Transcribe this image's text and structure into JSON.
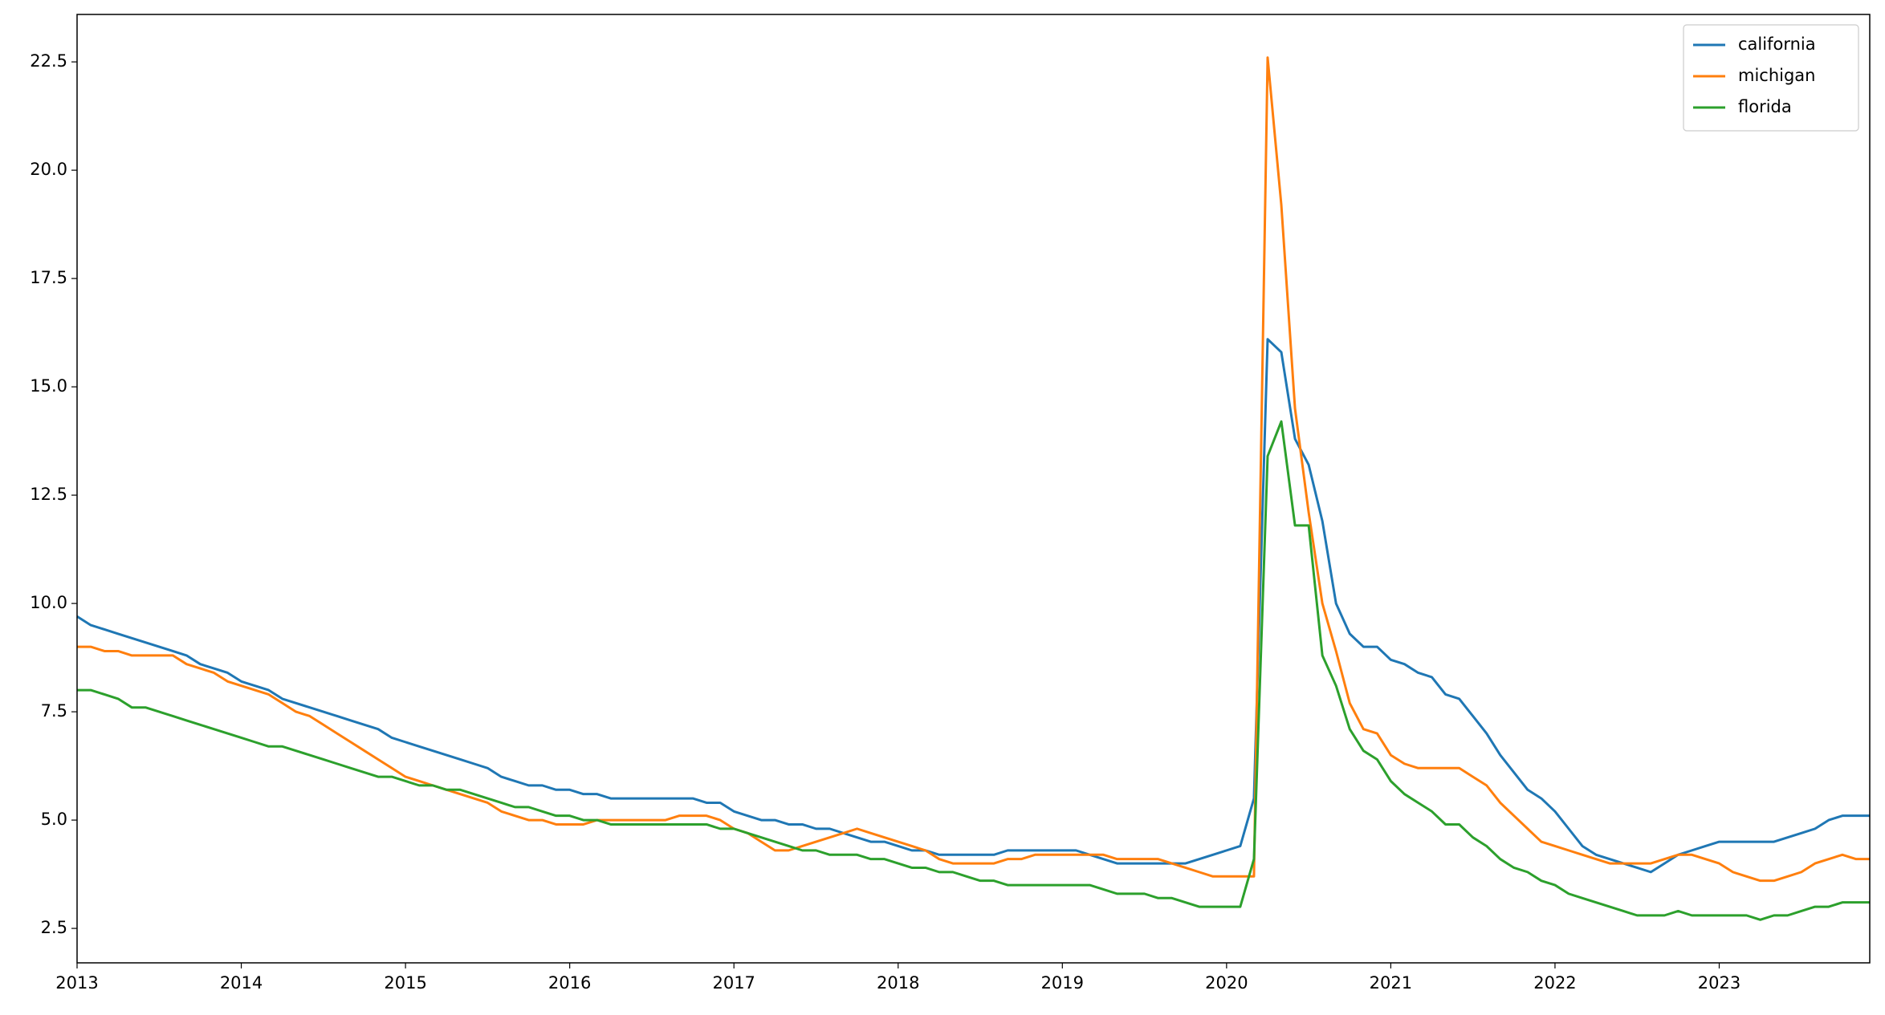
{
  "chart_data": {
    "type": "line",
    "x": [
      "2013-01",
      "2013-02",
      "2013-03",
      "2013-04",
      "2013-05",
      "2013-06",
      "2013-07",
      "2013-08",
      "2013-09",
      "2013-10",
      "2013-11",
      "2013-12",
      "2014-01",
      "2014-02",
      "2014-03",
      "2014-04",
      "2014-05",
      "2014-06",
      "2014-07",
      "2014-08",
      "2014-09",
      "2014-10",
      "2014-11",
      "2014-12",
      "2015-01",
      "2015-02",
      "2015-03",
      "2015-04",
      "2015-05",
      "2015-06",
      "2015-07",
      "2015-08",
      "2015-09",
      "2015-10",
      "2015-11",
      "2015-12",
      "2016-01",
      "2016-02",
      "2016-03",
      "2016-04",
      "2016-05",
      "2016-06",
      "2016-07",
      "2016-08",
      "2016-09",
      "2016-10",
      "2016-11",
      "2016-12",
      "2017-01",
      "2017-02",
      "2017-03",
      "2017-04",
      "2017-05",
      "2017-06",
      "2017-07",
      "2017-08",
      "2017-09",
      "2017-10",
      "2017-11",
      "2017-12",
      "2018-01",
      "2018-02",
      "2018-03",
      "2018-04",
      "2018-05",
      "2018-06",
      "2018-07",
      "2018-08",
      "2018-09",
      "2018-10",
      "2018-11",
      "2018-12",
      "2019-01",
      "2019-02",
      "2019-03",
      "2019-04",
      "2019-05",
      "2019-06",
      "2019-07",
      "2019-08",
      "2019-09",
      "2019-10",
      "2019-11",
      "2019-12",
      "2020-01",
      "2020-02",
      "2020-03",
      "2020-04",
      "2020-05",
      "2020-06",
      "2020-07",
      "2020-08",
      "2020-09",
      "2020-10",
      "2020-11",
      "2020-12",
      "2021-01",
      "2021-02",
      "2021-03",
      "2021-04",
      "2021-05",
      "2021-06",
      "2021-07",
      "2021-08",
      "2021-09",
      "2021-10",
      "2021-11",
      "2021-12",
      "2022-01",
      "2022-02",
      "2022-03",
      "2022-04",
      "2022-05",
      "2022-06",
      "2022-07",
      "2022-08",
      "2022-09",
      "2022-10",
      "2022-11",
      "2022-12",
      "2023-01",
      "2023-02",
      "2023-03",
      "2023-04",
      "2023-05",
      "2023-06",
      "2023-07",
      "2023-08",
      "2023-09",
      "2023-10",
      "2023-11",
      "2023-12"
    ],
    "series": [
      {
        "name": "california",
        "color": "#1f77b4",
        "values": [
          9.7,
          9.5,
          9.4,
          9.3,
          9.2,
          9.1,
          9.0,
          8.9,
          8.8,
          8.6,
          8.5,
          8.4,
          8.2,
          8.1,
          8.0,
          7.8,
          7.7,
          7.6,
          7.5,
          7.4,
          7.3,
          7.2,
          7.1,
          6.9,
          6.8,
          6.7,
          6.6,
          6.5,
          6.4,
          6.3,
          6.2,
          6.0,
          5.9,
          5.8,
          5.8,
          5.7,
          5.7,
          5.6,
          5.6,
          5.5,
          5.5,
          5.5,
          5.5,
          5.5,
          5.5,
          5.5,
          5.4,
          5.4,
          5.2,
          5.1,
          5.0,
          5.0,
          4.9,
          4.9,
          4.8,
          4.8,
          4.7,
          4.6,
          4.5,
          4.5,
          4.4,
          4.3,
          4.3,
          4.2,
          4.2,
          4.2,
          4.2,
          4.2,
          4.3,
          4.3,
          4.3,
          4.3,
          4.3,
          4.3,
          4.2,
          4.1,
          4.0,
          4.0,
          4.0,
          4.0,
          4.0,
          4.0,
          4.1,
          4.2,
          4.3,
          4.4,
          5.5,
          16.1,
          15.8,
          13.8,
          13.2,
          11.9,
          10.0,
          9.3,
          9.0,
          9.0,
          8.7,
          8.6,
          8.4,
          8.3,
          7.9,
          7.8,
          7.4,
          7.0,
          6.5,
          6.1,
          5.7,
          5.5,
          5.2,
          4.8,
          4.4,
          4.2,
          4.1,
          4.0,
          3.9,
          3.8,
          4.0,
          4.2,
          4.3,
          4.4,
          4.5,
          4.5,
          4.5,
          4.5,
          4.5,
          4.6,
          4.7,
          4.8,
          5.0,
          5.1,
          5.1,
          5.1
        ]
      },
      {
        "name": "michigan",
        "color": "#ff7f0e",
        "values": [
          9.0,
          9.0,
          8.9,
          8.9,
          8.8,
          8.8,
          8.8,
          8.8,
          8.6,
          8.5,
          8.4,
          8.2,
          8.1,
          8.0,
          7.9,
          7.7,
          7.5,
          7.4,
          7.2,
          7.0,
          6.8,
          6.6,
          6.4,
          6.2,
          6.0,
          5.9,
          5.8,
          5.7,
          5.6,
          5.5,
          5.4,
          5.2,
          5.1,
          5.0,
          5.0,
          4.9,
          4.9,
          4.9,
          5.0,
          5.0,
          5.0,
          5.0,
          5.0,
          5.0,
          5.1,
          5.1,
          5.1,
          5.0,
          4.8,
          4.7,
          4.5,
          4.3,
          4.3,
          4.4,
          4.5,
          4.6,
          4.7,
          4.8,
          4.7,
          4.6,
          4.5,
          4.4,
          4.3,
          4.1,
          4.0,
          4.0,
          4.0,
          4.0,
          4.1,
          4.1,
          4.2,
          4.2,
          4.2,
          4.2,
          4.2,
          4.2,
          4.1,
          4.1,
          4.1,
          4.1,
          4.0,
          3.9,
          3.8,
          3.7,
          3.7,
          3.7,
          3.7,
          22.6,
          19.2,
          14.5,
          12.1,
          10.0,
          8.9,
          7.7,
          7.1,
          7.0,
          6.5,
          6.3,
          6.2,
          6.2,
          6.2,
          6.2,
          6.0,
          5.8,
          5.4,
          5.1,
          4.8,
          4.5,
          4.4,
          4.3,
          4.2,
          4.1,
          4.0,
          4.0,
          4.0,
          4.0,
          4.1,
          4.2,
          4.2,
          4.1,
          4.0,
          3.8,
          3.7,
          3.6,
          3.6,
          3.7,
          3.8,
          4.0,
          4.1,
          4.2,
          4.1,
          4.1
        ]
      },
      {
        "name": "florida",
        "color": "#2ca02c",
        "values": [
          8.0,
          8.0,
          7.9,
          7.8,
          7.6,
          7.6,
          7.5,
          7.4,
          7.3,
          7.2,
          7.1,
          7.0,
          6.9,
          6.8,
          6.7,
          6.7,
          6.6,
          6.5,
          6.4,
          6.3,
          6.2,
          6.1,
          6.0,
          6.0,
          5.9,
          5.8,
          5.8,
          5.7,
          5.7,
          5.6,
          5.5,
          5.4,
          5.3,
          5.3,
          5.2,
          5.1,
          5.1,
          5.0,
          5.0,
          4.9,
          4.9,
          4.9,
          4.9,
          4.9,
          4.9,
          4.9,
          4.9,
          4.8,
          4.8,
          4.7,
          4.6,
          4.5,
          4.4,
          4.3,
          4.3,
          4.2,
          4.2,
          4.2,
          4.1,
          4.1,
          4.0,
          3.9,
          3.9,
          3.8,
          3.8,
          3.7,
          3.6,
          3.6,
          3.5,
          3.5,
          3.5,
          3.5,
          3.5,
          3.5,
          3.5,
          3.4,
          3.3,
          3.3,
          3.3,
          3.2,
          3.2,
          3.1,
          3.0,
          3.0,
          3.0,
          3.0,
          4.1,
          13.4,
          14.2,
          11.8,
          11.8,
          8.8,
          8.1,
          7.1,
          6.6,
          6.4,
          5.9,
          5.6,
          5.4,
          5.2,
          4.9,
          4.9,
          4.6,
          4.4,
          4.1,
          3.9,
          3.8,
          3.6,
          3.5,
          3.3,
          3.2,
          3.1,
          3.0,
          2.9,
          2.8,
          2.8,
          2.8,
          2.9,
          2.8,
          2.8,
          2.8,
          2.8,
          2.8,
          2.7,
          2.8,
          2.8,
          2.9,
          3.0,
          3.0,
          3.1,
          3.1,
          3.1
        ]
      }
    ],
    "xlim": [
      "2013-01",
      "2023-12"
    ],
    "xticks": [
      2013,
      2014,
      2015,
      2016,
      2017,
      2018,
      2019,
      2020,
      2021,
      2022,
      2023
    ],
    "ylim": [
      1.705,
      23.595
    ],
    "yticks": [
      2.5,
      {
        "value": 5,
        "label": "5.0"
      },
      7.5,
      {
        "value": 10,
        "label": "10.0"
      },
      12.5,
      {
        "value": 15,
        "label": "15.0"
      },
      17.5,
      {
        "value": 20,
        "label": "20.0"
      },
      22.5
    ],
    "grid": false,
    "legend": "upper-right"
  }
}
